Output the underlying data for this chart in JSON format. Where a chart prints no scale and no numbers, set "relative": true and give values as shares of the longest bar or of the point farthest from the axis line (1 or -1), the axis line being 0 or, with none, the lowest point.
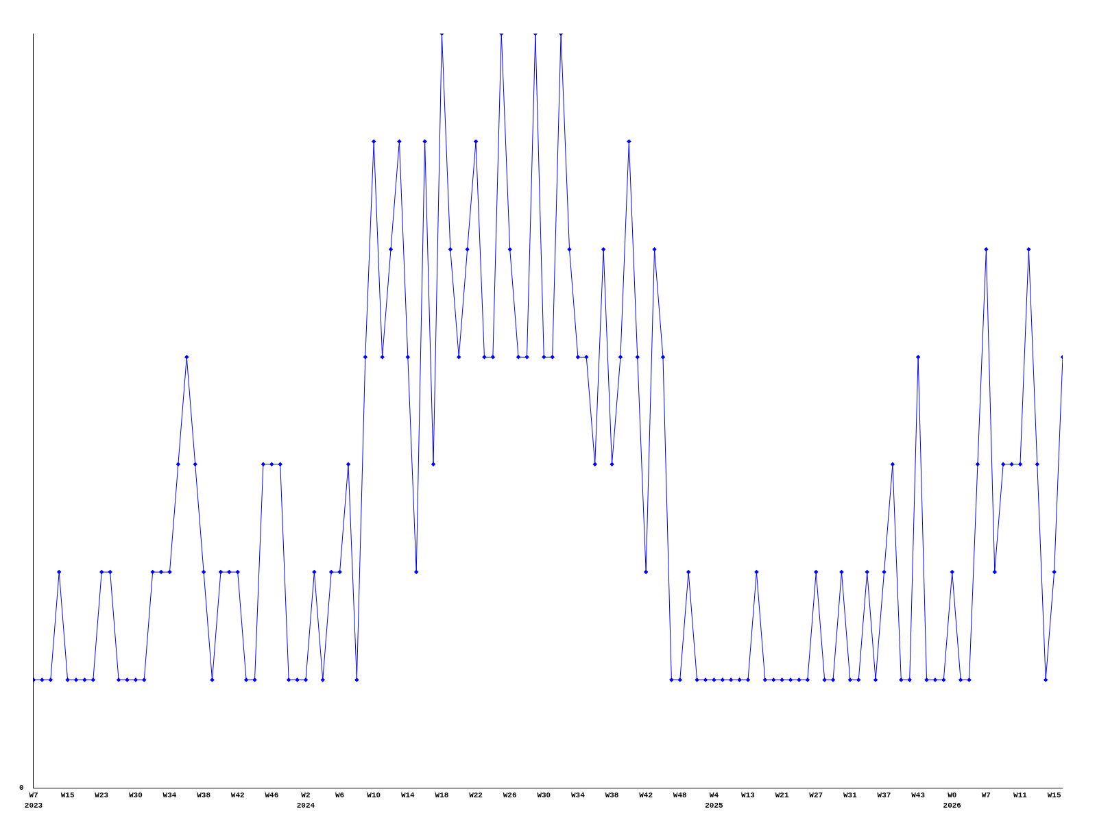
{
  "chart_data": {
    "type": "line",
    "relative": true,
    "marker": "diamond",
    "line_style": "solid",
    "annotations": [
      "0"
    ],
    "categories": [
      "W7\n2023",
      null,
      null,
      null,
      "W15",
      null,
      null,
      null,
      "W23",
      null,
      null,
      null,
      "W30",
      null,
      null,
      null,
      "W34",
      null,
      null,
      null,
      "W38",
      null,
      null,
      null,
      "W42",
      null,
      null,
      null,
      "W46",
      null,
      null,
      null,
      "W2\n2024",
      null,
      null,
      null,
      "W6",
      null,
      null,
      null,
      "W10",
      null,
      null,
      null,
      "W14",
      null,
      null,
      null,
      "W18",
      null,
      null,
      null,
      "W22",
      null,
      null,
      null,
      "W26",
      null,
      null,
      null,
      "W30",
      null,
      null,
      null,
      "W34",
      null,
      null,
      null,
      "W38",
      null,
      null,
      null,
      "W42",
      null,
      null,
      null,
      "W48",
      null,
      null,
      null,
      "W4\n2025",
      null,
      null,
      null,
      "W13",
      null,
      null,
      null,
      "W21",
      null,
      null,
      null,
      "W27",
      null,
      null,
      null,
      "W31",
      null,
      null,
      null,
      "W37",
      null,
      null,
      null,
      "W43",
      null,
      null,
      null,
      "W0\n2026",
      null,
      null,
      null,
      "W7",
      null,
      null,
      null,
      "W11",
      null,
      null,
      null,
      "W15",
      null
    ],
    "series": [
      {
        "color": "#0000ff",
        "values": [
          0.143,
          0.143,
          0.143,
          0.286,
          0.143,
          0.143,
          0.143,
          0.143,
          0.286,
          0.286,
          0.143,
          0.143,
          0.143,
          0.143,
          0.286,
          0.286,
          0.286,
          0.429,
          0.571,
          0.429,
          0.286,
          0.143,
          0.286,
          0.286,
          0.286,
          0.143,
          0.143,
          0.429,
          0.429,
          0.429,
          0.143,
          0.143,
          0.143,
          0.286,
          0.143,
          0.286,
          0.286,
          0.429,
          0.143,
          0.571,
          0.857,
          0.571,
          0.714,
          0.857,
          0.571,
          0.286,
          0.857,
          0.429,
          1,
          0.714,
          0.571,
          0.714,
          0.857,
          0.571,
          0.571,
          1,
          0.714,
          0.571,
          0.571,
          1,
          0.571,
          0.571,
          1,
          0.714,
          0.571,
          0.571,
          0.429,
          0.714,
          0.429,
          0.571,
          0.857,
          0.571,
          0.286,
          0.714,
          0.571,
          0.143,
          0.143,
          0.286,
          0.143,
          0.143,
          0.143,
          0.143,
          0.143,
          0.143,
          0.143,
          0.286,
          0.143,
          0.143,
          0.143,
          0.143,
          0.143,
          0.143,
          0.286,
          0.143,
          0.143,
          0.286,
          0.143,
          0.143,
          0.286,
          0.143,
          0.286,
          0.429,
          0.143,
          0.143,
          0.571,
          0.143,
          0.143,
          0.143,
          0.286,
          0.143,
          0.143,
          0.429,
          0.714,
          0.286,
          0.429,
          0.429,
          0.429,
          0.714,
          0.429,
          0.143,
          0.286,
          0.571
        ]
      }
    ]
  }
}
